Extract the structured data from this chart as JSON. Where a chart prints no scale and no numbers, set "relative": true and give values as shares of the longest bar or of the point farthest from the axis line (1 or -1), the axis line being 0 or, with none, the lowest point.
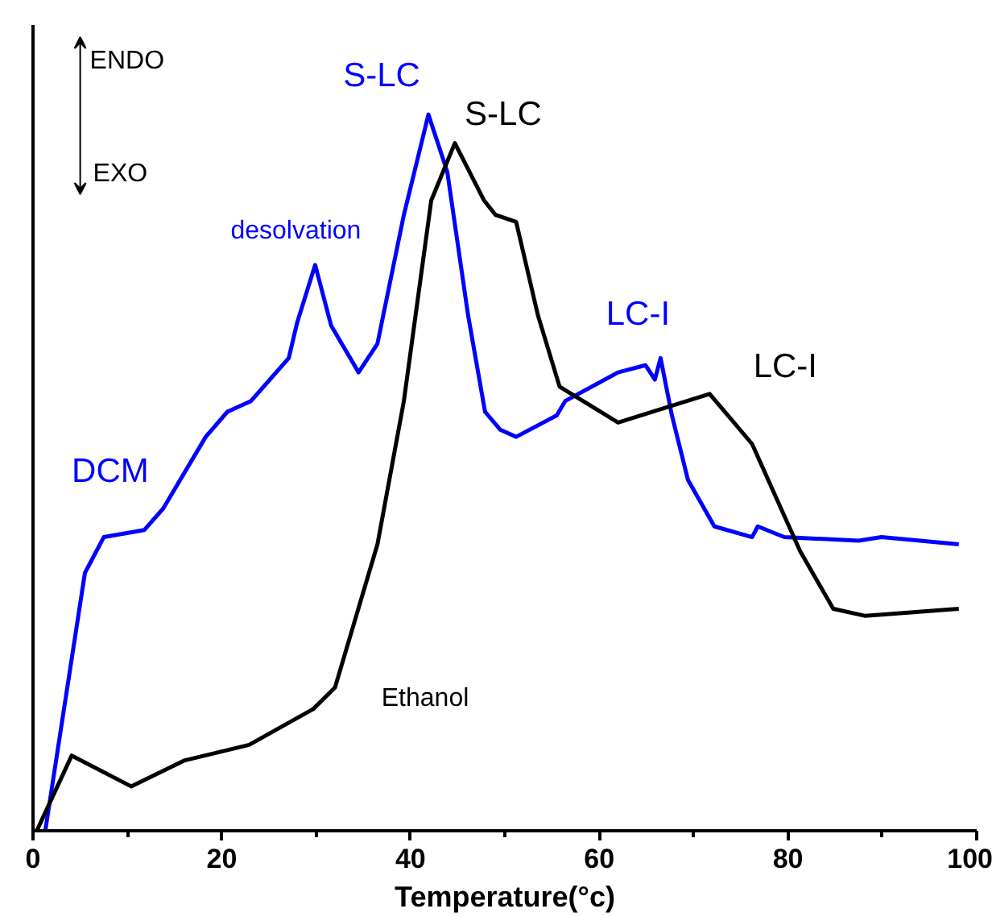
{
  "chart_data": {
    "type": "line",
    "relative": true,
    "xlabel": "Temperature(°c)",
    "xlim": [
      0,
      100
    ],
    "xticks": [
      0,
      20,
      40,
      60,
      80,
      100
    ],
    "grid": false,
    "marker": "none",
    "line_style": "solid",
    "series": [
      {
        "color": "#0000ff",
        "x": [
          1.3,
          4.1,
          5.5,
          7.5,
          11.8,
          13.8,
          18.3,
          20.6,
          23.1,
          25.1,
          27.1,
          28.0,
          29.9,
          31.6,
          34.5,
          36.5,
          39.3,
          41.9,
          43.9,
          46.1,
          47.9,
          49.5,
          51.2,
          55.5,
          56.4,
          62.0,
          64.9,
          65.9,
          66.5,
          67.7,
          69.4,
          72.2,
          76.2,
          76.8,
          79.6,
          87.5,
          89.9,
          98.1
        ],
        "values": [
          0,
          0.24,
          0.36,
          0.41,
          0.42,
          0.45,
          0.55,
          0.585,
          0.6,
          0.63,
          0.66,
          0.71,
          0.79,
          0.705,
          0.64,
          0.68,
          0.86,
          1.0,
          0.92,
          0.72,
          0.585,
          0.56,
          0.55,
          0.58,
          0.6,
          0.64,
          0.65,
          0.63,
          0.66,
          0.58,
          0.49,
          0.425,
          0.41,
          0.425,
          0.41,
          0.405,
          0.41,
          0.4
        ]
      },
      {
        "color": "#000000",
        "x": [
          0.4,
          4.1,
          10.4,
          16.0,
          22.9,
          29.7,
          32.0,
          36.5,
          39.3,
          42.2,
          44.7,
          47.8,
          49.0,
          51.2,
          53.5,
          55.8,
          62.0,
          71.7,
          76.2,
          81.3,
          84.8,
          88.2,
          98.1
        ],
        "values": [
          0,
          0.105,
          0.062,
          0.098,
          0.12,
          0.17,
          0.2,
          0.4,
          0.6,
          0.88,
          0.96,
          0.88,
          0.86,
          0.85,
          0.72,
          0.62,
          0.57,
          0.61,
          0.54,
          0.39,
          0.31,
          0.3,
          0.31
        ]
      }
    ],
    "annotations": [
      "ENDO",
      "EXO",
      {
        "text": "DCM",
        "x": 7.5,
        "y": 0.41
      },
      {
        "text": "desolvation",
        "x": 29.9,
        "y": 0.79
      },
      {
        "text": "S-LC",
        "x": 41.9,
        "y": 1.0
      },
      {
        "text": "S-LC",
        "x": 44.7,
        "y": 0.96
      },
      {
        "text": "LC-I",
        "x": 66.5,
        "y": 0.66
      },
      {
        "text": "LC-I",
        "x": 71.7,
        "y": 0.61
      },
      {
        "text": "Ethanol",
        "x": 32.0,
        "y": 0.2
      }
    ]
  }
}
